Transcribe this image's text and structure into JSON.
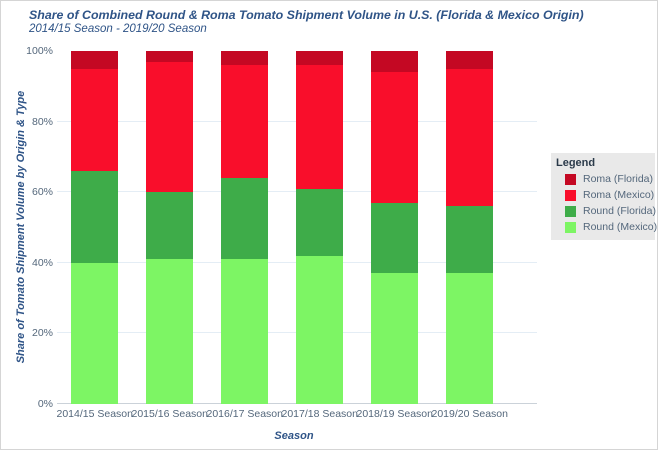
{
  "header": {
    "title": "Share of Combined Round & Roma Tomato Shipment Volume in U.S. (Florida & Mexico Origin)",
    "subtitle": "2014/15 Season - 2019/20 Season"
  },
  "chart_data": {
    "type": "bar",
    "stacked": true,
    "title": "Share of Combined Round & Roma Tomato Shipment Volume in U.S. (Florida & Mexico Origin)",
    "subtitle": "2014/15 Season - 2019/20 Season",
    "categories": [
      "2014/15 Season",
      "2015/16 Season",
      "2016/17 Season",
      "2017/18 Season",
      "2018/19 Season",
      "2019/20 Season"
    ],
    "series": [
      {
        "name": "Round (Mexico)",
        "color": "#7DF564",
        "values": [
          40,
          41,
          41,
          42,
          37,
          37
        ]
      },
      {
        "name": "Round (Florida)",
        "color": "#3EAC49",
        "values": [
          26,
          19,
          23,
          19,
          20,
          19
        ]
      },
      {
        "name": "Roma (Mexico)",
        "color": "#F90E2B",
        "values": [
          29,
          37,
          32,
          35,
          37,
          39
        ]
      },
      {
        "name": "Roma (Florida)",
        "color": "#C40823",
        "values": [
          5,
          3,
          4,
          4,
          6,
          5
        ]
      }
    ],
    "xlabel": "Season",
    "ylabel": "Share of Tomato Shipment Volume by Origin & Type",
    "ylim": [
      0,
      100
    ],
    "ytick_values": [
      0,
      20,
      40,
      60,
      80,
      100
    ],
    "ytick_labels": [
      "0%",
      "20%",
      "40%",
      "60%",
      "80%",
      "100%"
    ],
    "units": "percent of total",
    "grid": true,
    "legend_position": "right"
  },
  "legend": {
    "title": "Legend",
    "items": [
      {
        "label": "Roma (Florida)",
        "color": "#C40823"
      },
      {
        "label": "Roma (Mexico)",
        "color": "#F90E2B"
      },
      {
        "label": "Round (Florida)",
        "color": "#3EAC49"
      },
      {
        "label": "Round (Mexico)",
        "color": "#7DF564"
      }
    ]
  },
  "colors": {
    "title_text": "#2F5487",
    "tick_text": "#54677B",
    "gridline": "#E4EDF5",
    "axis_line": "#CBD2D9",
    "legend_bg": "#E9E9E9",
    "background": "#FFFFFF"
  }
}
